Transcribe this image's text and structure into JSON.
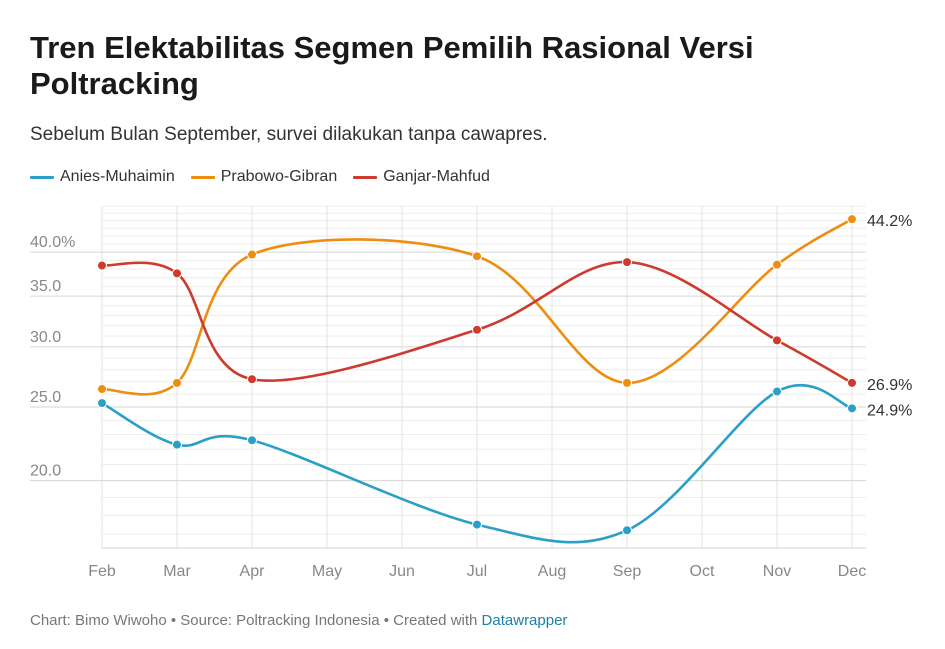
{
  "header": {
    "title": "Tren Elektabilitas Segmen Pemilih Rasional Versi Poltracking",
    "subtitle": "Sebelum Bulan September, survei dilakukan tanpa cawapres."
  },
  "footer": {
    "credit": "Chart: Bimo Wiwoho • Source: Poltracking Indonesia • Created with ",
    "link": "Datawrapper"
  },
  "chart_data": {
    "type": "line",
    "x": [
      "Feb",
      "Mar",
      "Apr",
      "May",
      "Jun",
      "Jul",
      "Aug",
      "Sep",
      "Oct",
      "Nov",
      "Dec"
    ],
    "yticks": [
      20,
      25,
      30,
      35,
      40
    ],
    "ytick_labels": [
      "20.0",
      "25.0",
      "30.0",
      "35.0",
      "40.0%"
    ],
    "ylim": [
      16.3,
      46
    ],
    "yscale": "log",
    "grid": true,
    "legend": "top-left",
    "series": [
      {
        "name": "Anies-Muhaimin",
        "color": "#2aa0c7",
        "values": [
          25.3,
          22.3,
          22.6,
          null,
          null,
          17.5,
          null,
          17.2,
          null,
          26.2,
          24.9
        ],
        "end_label": "24.9%"
      },
      {
        "name": "Prabowo-Gibran",
        "color": "#ee8e11",
        "values": [
          26.4,
          26.9,
          39.7,
          null,
          null,
          39.5,
          null,
          26.9,
          null,
          38.5,
          44.2
        ],
        "end_label": "44.2%"
      },
      {
        "name": "Ganjar-Mahfud",
        "color": "#cd3a2e",
        "values": [
          38.4,
          37.5,
          27.2,
          null,
          null,
          31.6,
          null,
          38.8,
          null,
          30.6,
          26.9
        ],
        "end_label": "26.9%"
      }
    ]
  }
}
